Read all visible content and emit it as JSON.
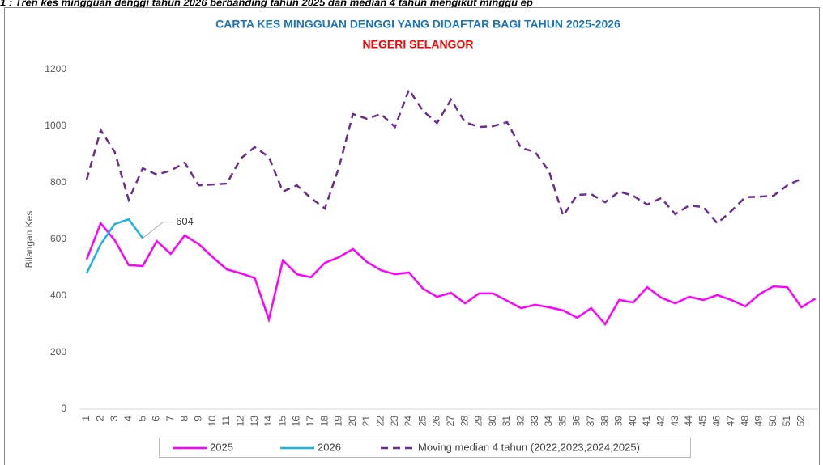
{
  "header_text": "1 : Tren kes mingguan denggi tahun 2026 berbanding tahun 2025 dan median 4 tahun mengikut minggu ep",
  "chart_data": {
    "type": "line",
    "title": "CARTA KES MINGGUAN DENGGI YANG DIDAFTAR BAGI TAHUN 2025-2026",
    "subtitle": "NEGERI SELANGOR",
    "y_label": "Bilangan Kes",
    "categories": [
      "1",
      "2",
      "3",
      "4",
      "5",
      "6",
      "7",
      "8",
      "9",
      "10",
      "11",
      "12",
      "13",
      "14",
      "15",
      "16",
      "17",
      "18",
      "19",
      "20",
      "21",
      "22",
      "23",
      "24",
      "25",
      "26",
      "27",
      "28",
      "29",
      "30",
      "31",
      "32",
      "33",
      "34",
      "35",
      "36",
      "37",
      "38",
      "39",
      "40",
      "41",
      "42",
      "43",
      "44",
      "45",
      "46",
      "47",
      "48",
      "49",
      "50",
      "51",
      "52",
      null
    ],
    "ylim": [
      0,
      1200
    ],
    "yticks": [
      0,
      200,
      400,
      600,
      800,
      1000,
      1200
    ],
    "grid": false,
    "series": [
      {
        "name": "2025",
        "color": "#ff00ff",
        "dashed": false,
        "values": [
          529,
          657,
          597,
          509,
          506,
          594,
          549,
          614,
          583,
          537,
          494,
          480,
          463,
          317,
          526,
          477,
          466,
          517,
          537,
          566,
          520,
          491,
          477,
          483,
          426,
          397,
          411,
          374,
          409,
          409,
          383,
          357,
          369,
          360,
          349,
          323,
          357,
          300,
          386,
          377,
          431,
          394,
          374,
          397,
          386,
          403,
          386,
          363,
          406,
          434,
          431,
          360,
          391
        ]
      },
      {
        "name": "2026",
        "color": "#1fb0e6",
        "dashed": false,
        "values": [
          480,
          583,
          654,
          671,
          604,
          null,
          null,
          null,
          null,
          null,
          null,
          null,
          null,
          null,
          null,
          null,
          null,
          null,
          null,
          null,
          null,
          null,
          null,
          null,
          null,
          null,
          null,
          null,
          null,
          null,
          null,
          null,
          null,
          null,
          null,
          null,
          null,
          null,
          null,
          null,
          null,
          null,
          null,
          null,
          null,
          null,
          null,
          null,
          null,
          null,
          null,
          null,
          null
        ]
      },
      {
        "name": "Moving median 4 tahun (2022,2023,2024,2025)",
        "color": "#6b2d8f",
        "dashed": true,
        "values": [
          811,
          986,
          909,
          740,
          851,
          829,
          843,
          871,
          791,
          794,
          797,
          886,
          926,
          891,
          769,
          791,
          746,
          709,
          854,
          1043,
          1026,
          1043,
          997,
          1129,
          1054,
          1011,
          1094,
          1014,
          997,
          1000,
          1014,
          923,
          909,
          840,
          683,
          757,
          760,
          731,
          769,
          754,
          723,
          746,
          689,
          720,
          714,
          657,
          700,
          749,
          751,
          754,
          791,
          814,
          null
        ]
      }
    ]
  }
}
